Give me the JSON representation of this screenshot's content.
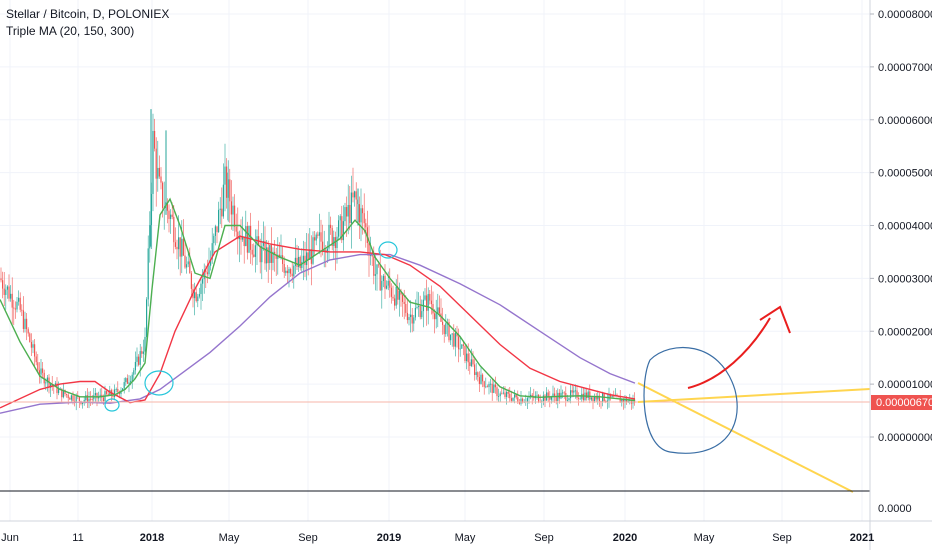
{
  "header": {
    "title": "Stellar / Bitcoin, D, POLONIEX",
    "indicator": "Triple MA (20, 150, 300)"
  },
  "chart_data": {
    "type": "line",
    "title": "Stellar / Bitcoin, D, POLONIEX",
    "y_axis": {
      "ticks": [
        "0.00008000",
        "0.00007000",
        "0.00006000",
        "0.00005000",
        "0.00004000",
        "0.00003000",
        "0.00002000",
        "0.00001000",
        "0.00000000"
      ],
      "tick_values": [
        8,
        7,
        6,
        5,
        4,
        3,
        2,
        1,
        0
      ],
      "unit_note": "",
      "ylim": [
        0,
        8
      ]
    },
    "x_axis": {
      "ticks": [
        "Jun",
        "11",
        "2018",
        "May",
        "Sep",
        "2019",
        "May",
        "Sep",
        "2020",
        "May",
        "Sep",
        "2021"
      ]
    },
    "last_price": "0.00000670",
    "last_price_value": 0.67,
    "sub_pane": {
      "tick": "0.0000"
    },
    "colors": {
      "up": "#26a69a",
      "down": "#ef5350",
      "ma20": "#4caf50",
      "ma150": "#f23645",
      "ma300": "#9575cd",
      "trend": "#ffd54f",
      "arrow": "#e91e1e",
      "circle": "#3a6ea5",
      "price_line": "#f7b6a8",
      "price_tag": "#ef5350"
    },
    "series": [
      {
        "id": "price",
        "x": [
          0,
          20,
          40,
          60,
          80,
          100,
          115,
          125,
          135,
          145,
          150,
          153,
          160,
          170,
          180,
          195,
          210,
          225,
          240,
          260,
          280,
          300,
          320,
          340,
          355,
          365,
          375,
          390,
          410,
          430,
          440,
          460,
          480,
          500,
          520,
          540,
          560,
          580,
          600,
          620,
          635
        ],
        "values": [
          3.0,
          2.4,
          1.2,
          0.85,
          0.7,
          0.75,
          0.82,
          1.0,
          1.3,
          1.8,
          4.2,
          5.6,
          4.6,
          4.2,
          3.6,
          2.7,
          3.3,
          4.8,
          3.9,
          3.5,
          3.3,
          3.2,
          3.7,
          3.9,
          4.5,
          4.0,
          3.1,
          2.8,
          2.3,
          2.6,
          2.2,
          1.7,
          1.1,
          0.8,
          0.72,
          0.75,
          0.78,
          0.8,
          0.75,
          0.7,
          0.67
        ]
      },
      {
        "id": "ma20",
        "x": [
          0,
          20,
          40,
          60,
          80,
          100,
          115,
          125,
          135,
          145,
          152,
          160,
          170,
          180,
          195,
          210,
          225,
          240,
          260,
          280,
          300,
          320,
          340,
          355,
          365,
          375,
          390,
          410,
          430,
          440,
          460,
          480,
          500,
          520,
          540,
          560,
          580,
          600,
          620,
          635
        ],
        "values": [
          2.6,
          1.8,
          1.15,
          0.9,
          0.76,
          0.76,
          0.8,
          0.9,
          1.1,
          1.4,
          2.8,
          4.2,
          4.5,
          4.0,
          3.1,
          3.0,
          4.0,
          4.0,
          3.6,
          3.4,
          3.25,
          3.5,
          3.75,
          4.1,
          3.9,
          3.4,
          3.0,
          2.55,
          2.45,
          2.3,
          1.9,
          1.35,
          0.95,
          0.78,
          0.75,
          0.77,
          0.78,
          0.76,
          0.72,
          0.69
        ]
      },
      {
        "id": "ma150",
        "x": [
          0,
          40,
          60,
          80,
          95,
          110,
          130,
          145,
          160,
          175,
          195,
          215,
          240,
          270,
          300,
          330,
          360,
          385,
          410,
          440,
          470,
          500,
          530,
          560,
          590,
          610,
          635
        ],
        "values": [
          0.55,
          0.9,
          1.0,
          1.05,
          1.05,
          0.85,
          0.65,
          0.7,
          1.2,
          2.0,
          2.8,
          3.5,
          3.8,
          3.65,
          3.55,
          3.5,
          3.5,
          3.45,
          3.25,
          2.85,
          2.3,
          1.75,
          1.3,
          1.05,
          0.9,
          0.8,
          0.72
        ]
      },
      {
        "id": "ma300",
        "x": [
          0,
          40,
          80,
          110,
          140,
          160,
          185,
          210,
          240,
          270,
          300,
          330,
          360,
          390,
          420,
          460,
          500,
          540,
          580,
          610,
          635
        ],
        "values": [
          0.45,
          0.62,
          0.66,
          0.64,
          0.72,
          0.9,
          1.25,
          1.6,
          2.1,
          2.65,
          3.1,
          3.35,
          3.45,
          3.45,
          3.25,
          2.9,
          2.5,
          2.0,
          1.5,
          1.2,
          1.02
        ]
      }
    ],
    "legend": "top-left",
    "grid": true
  }
}
